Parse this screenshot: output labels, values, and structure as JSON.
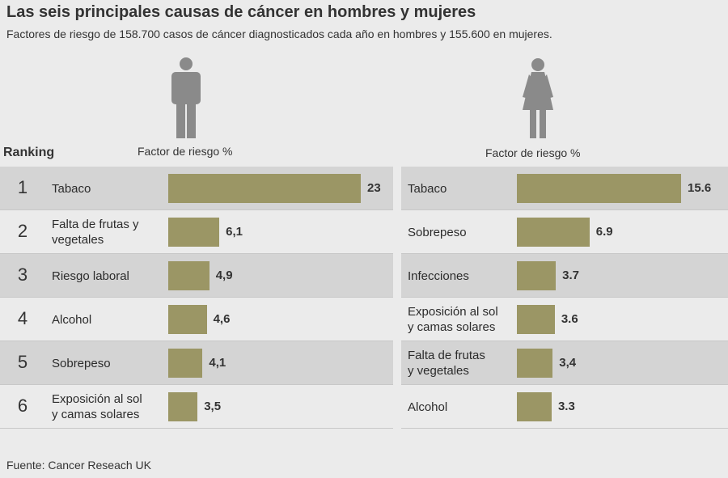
{
  "chart_data": [
    {
      "type": "bar",
      "orientation": "horizontal",
      "group": "hombres",
      "title": "Las seis principales causas de cáncer en hombres y mujeres",
      "subtitle": "Factores de riesgo de 158.700 casos de cáncer diagnosticados cada año en hombres y 155.600 en mujeres.",
      "xlabel": "Factor de riesgo %",
      "ranking_label": "Ranking",
      "ranks": [
        "1",
        "2",
        "3",
        "4",
        "5",
        "6"
      ],
      "categories": [
        "Tabaco",
        "Falta de frutas y vegetales",
        "Riesgo laboral",
        "Alcohol",
        "Sobrepeso",
        "Exposición al sol y camas solares"
      ],
      "category_lines": [
        [
          "Tabaco"
        ],
        [
          "Falta de frutas y",
          "vegetales"
        ],
        [
          "Riesgo laboral"
        ],
        [
          "Alcohol"
        ],
        [
          "Sobrepeso"
        ],
        [
          "Exposición al sol",
          "y camas solares"
        ]
      ],
      "values": [
        23,
        6.1,
        4.9,
        4.6,
        4.1,
        3.5
      ],
      "value_labels": [
        "23",
        "6,1",
        "4,9",
        "4,6",
        "4,1",
        "3,5"
      ]
    },
    {
      "type": "bar",
      "orientation": "horizontal",
      "group": "mujeres",
      "xlabel": "Factor de riesgo %",
      "categories": [
        "Tabaco",
        "Sobrepeso",
        "Infecciones",
        "Exposición al sol y camas solares",
        "Falta de frutas y vegetales",
        "Alcohol"
      ],
      "category_lines": [
        [
          "Tabaco"
        ],
        [
          "Sobrepeso"
        ],
        [
          "Infecciones"
        ],
        [
          "Exposición al sol",
          "y camas solares"
        ],
        [
          "Falta de frutas",
          "y vegetales"
        ],
        [
          "Alcohol"
        ]
      ],
      "values": [
        15.6,
        6.9,
        3.7,
        3.6,
        3.4,
        3.3
      ],
      "value_labels": [
        "15.6",
        "6.9",
        "3.7",
        "3.6",
        "3,4",
        "3.3"
      ]
    }
  ],
  "source": "Fuente: Cancer Reseach UK",
  "colors": {
    "bar": "#9b9665",
    "row_shade": "#d4d4d4",
    "background": "#ebebeb",
    "figure": "#8a8a8a"
  },
  "icons": [
    "man-icon",
    "woman-icon"
  ]
}
